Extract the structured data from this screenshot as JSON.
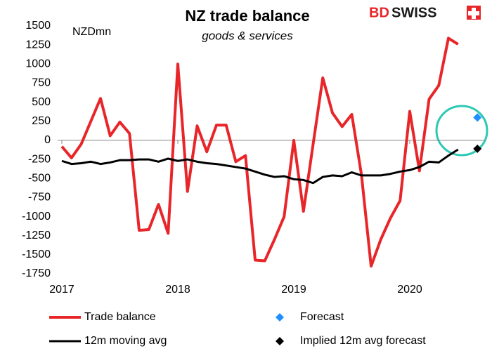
{
  "chart_data": {
    "type": "line",
    "title": "NZ trade balance",
    "subtitle": "goods & services",
    "y_label": "NZDmn",
    "logo": [
      "BD",
      "SWISS"
    ],
    "categories": [
      "2017",
      null,
      null,
      null,
      null,
      null,
      null,
      null,
      null,
      null,
      null,
      null,
      "2018",
      null,
      null,
      null,
      null,
      null,
      null,
      null,
      null,
      null,
      null,
      null,
      "2019",
      null,
      null,
      null,
      null,
      null,
      null,
      null,
      null,
      null,
      null,
      null,
      "2020",
      null,
      null,
      null,
      null,
      null,
      null,
      null
    ],
    "series": [
      {
        "name": "Trade balance",
        "color": "#e8262a",
        "style": "line",
        "values": [
          -80,
          -230,
          -50,
          250,
          550,
          60,
          240,
          90,
          -1180,
          -1170,
          -840,
          -1220,
          1000,
          -670,
          190,
          -150,
          200,
          200,
          -280,
          -200,
          -1570,
          -1580,
          -1300,
          -1000,
          0,
          -930,
          -50,
          820,
          360,
          180,
          340,
          -450,
          -1650,
          -1300,
          -1020,
          -790,
          380,
          -400,
          540,
          720,
          1340,
          1260,
          null,
          null
        ]
      },
      {
        "name": "Forecast",
        "color": "#1f8fff",
        "style": "marker",
        "values": [
          null,
          null,
          null,
          null,
          null,
          null,
          null,
          null,
          null,
          null,
          null,
          null,
          null,
          null,
          null,
          null,
          null,
          null,
          null,
          null,
          null,
          null,
          null,
          null,
          null,
          null,
          null,
          null,
          null,
          null,
          null,
          null,
          null,
          null,
          null,
          null,
          null,
          null,
          null,
          null,
          null,
          null,
          null,
          300
        ]
      },
      {
        "name": "12m moving avg",
        "color": "#000000",
        "style": "line",
        "values": [
          -270,
          -310,
          -300,
          -280,
          -310,
          -290,
          -260,
          -260,
          -250,
          -250,
          -280,
          -240,
          -270,
          -250,
          -280,
          -300,
          -310,
          -330,
          -350,
          -370,
          -410,
          -450,
          -480,
          -470,
          -510,
          -520,
          -560,
          -480,
          -460,
          -470,
          -420,
          -460,
          -460,
          -460,
          -440,
          -410,
          -390,
          -350,
          -280,
          -290,
          -200,
          -120,
          null,
          null
        ]
      },
      {
        "name": "Implied 12m avg forecast",
        "color": "#000000",
        "style": "marker",
        "values": [
          null,
          null,
          null,
          null,
          null,
          null,
          null,
          null,
          null,
          null,
          null,
          null,
          null,
          null,
          null,
          null,
          null,
          null,
          null,
          null,
          null,
          null,
          null,
          null,
          null,
          null,
          null,
          null,
          null,
          null,
          null,
          null,
          null,
          null,
          null,
          null,
          null,
          null,
          null,
          null,
          null,
          null,
          null,
          -110
        ]
      }
    ],
    "ylim": [
      -1750,
      1500
    ],
    "yticks": [
      -1750,
      -1500,
      -1250,
      -1000,
      -750,
      -500,
      -250,
      0,
      250,
      500,
      750,
      1000,
      1250,
      1500
    ],
    "grid": false
  }
}
